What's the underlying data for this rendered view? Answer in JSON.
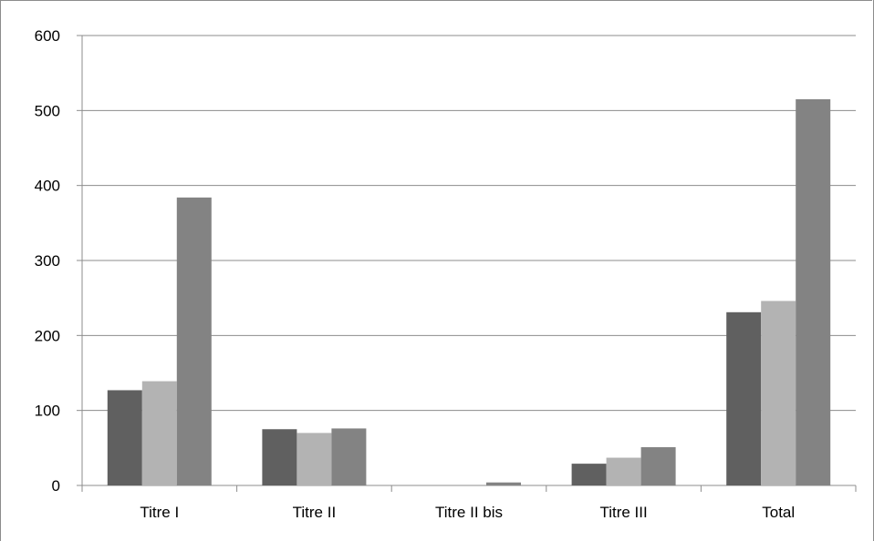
{
  "chart_data": {
    "type": "bar",
    "categories": [
      "Titre I",
      "Titre II",
      "Titre II bis",
      "Titre III",
      "Total"
    ],
    "series": [
      {
        "values": [
          127,
          75,
          0,
          29,
          231
        ],
        "color": "#606060"
      },
      {
        "values": [
          139,
          70,
          0,
          37,
          246
        ],
        "color": "#b3b3b3"
      },
      {
        "values": [
          384,
          76,
          4,
          51,
          515
        ],
        "color": "#838383"
      }
    ],
    "ylim": [
      0,
      600
    ],
    "yticks": [
      "0",
      "100",
      "200",
      "300",
      "400",
      "500",
      "600"
    ],
    "grid": true,
    "legend": "none"
  }
}
